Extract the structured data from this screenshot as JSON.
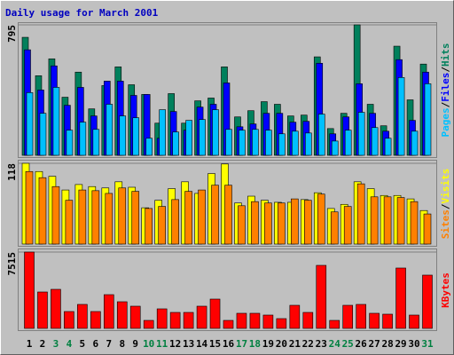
{
  "chart_data": [
    {
      "type": "bar",
      "title": "Daily usage for March 2001",
      "legend_separator": "/",
      "ylim": [
        0,
        795
      ],
      "yticks": [
        795
      ],
      "series": [
        {
          "name": "Pages",
          "color": "#00c0ff",
          "values": [
            382,
            256,
            414,
            153,
            202,
            158,
            311,
            240,
            229,
            104,
            278,
            142,
            213,
            218,
            278,
            158,
            153,
            158,
            153,
            131,
            147,
            136,
            251,
            87,
            153,
            262,
            169,
            104,
            474,
            147,
            436
          ]
        },
        {
          "name": "Files",
          "color": "#0000ff",
          "values": [
            643,
            398,
            545,
            305,
            414,
            240,
            452,
            452,
            365,
            371,
            104,
            267,
            153,
            294,
            311,
            441,
            174,
            191,
            256,
            256,
            202,
            207,
            561,
            131,
            234,
            436,
            256,
            147,
            583,
            213,
            507
          ]
        },
        {
          "name": "Hits",
          "color": "#00805c",
          "values": [
            719,
            485,
            588,
            354,
            507,
            283,
            425,
            539,
            430,
            371,
            196,
            376,
            196,
            332,
            349,
            539,
            234,
            272,
            327,
            311,
            240,
            245,
            600,
            163,
            256,
            795,
            311,
            180,
            665,
            338,
            556
          ]
        }
      ]
    },
    {
      "type": "bar",
      "legend_separator": "/",
      "ylim": [
        0,
        118
      ],
      "yticks": [
        118
      ],
      "series": [
        {
          "name": "Sites",
          "color": "#ff8000",
          "values": [
            106,
            97,
            84,
            64,
            79,
            78,
            74,
            82,
            77,
            52,
            55,
            65,
            77,
            79,
            86,
            86,
            56,
            62,
            60,
            60,
            66,
            64,
            73,
            47,
            55,
            88,
            69,
            69,
            68,
            62,
            44
          ]
        },
        {
          "name": "Visits",
          "color": "#ffff00",
          "values": [
            118,
            106,
            99,
            79,
            87,
            84,
            82,
            91,
            83,
            53,
            64,
            81,
            91,
            74,
            103,
            117,
            60,
            70,
            64,
            61,
            61,
            65,
            75,
            52,
            58,
            91,
            81,
            71,
            71,
            66,
            49
          ]
        }
      ]
    },
    {
      "type": "bar",
      "ylim": [
        0,
        7515
      ],
      "yticks": [
        7515
      ],
      "categories": [
        "1",
        "2",
        "3",
        "4",
        "5",
        "6",
        "7",
        "8",
        "9",
        "10",
        "11",
        "12",
        "13",
        "14",
        "15",
        "16",
        "17",
        "18",
        "19",
        "20",
        "21",
        "22",
        "23",
        "24",
        "25",
        "26",
        "27",
        "28",
        "29",
        "30",
        "31"
      ],
      "category_colors": [
        "#000000",
        "#000000",
        "#008040",
        "#008040",
        "#000000",
        "#000000",
        "#000000",
        "#000000",
        "#000000",
        "#008040",
        "#008040",
        "#000000",
        "#000000",
        "#000000",
        "#000000",
        "#000000",
        "#008040",
        "#008040",
        "#000000",
        "#000000",
        "#000000",
        "#000000",
        "#000000",
        "#008040",
        "#008040",
        "#000000",
        "#000000",
        "#000000",
        "#000000",
        "#000000",
        "#008040"
      ],
      "series": [
        {
          "name": "KBytes",
          "color": "#ff0000",
          "values": [
            7515,
            3583,
            3845,
            1660,
            2360,
            1660,
            3320,
            2622,
            2185,
            786,
            1923,
            1573,
            1573,
            2185,
            2884,
            786,
            1486,
            1486,
            1311,
            961,
            2272,
            1573,
            6205,
            786,
            2272,
            2360,
            1486,
            1398,
            5943,
            1311,
            5244
          ]
        }
      ]
    }
  ]
}
